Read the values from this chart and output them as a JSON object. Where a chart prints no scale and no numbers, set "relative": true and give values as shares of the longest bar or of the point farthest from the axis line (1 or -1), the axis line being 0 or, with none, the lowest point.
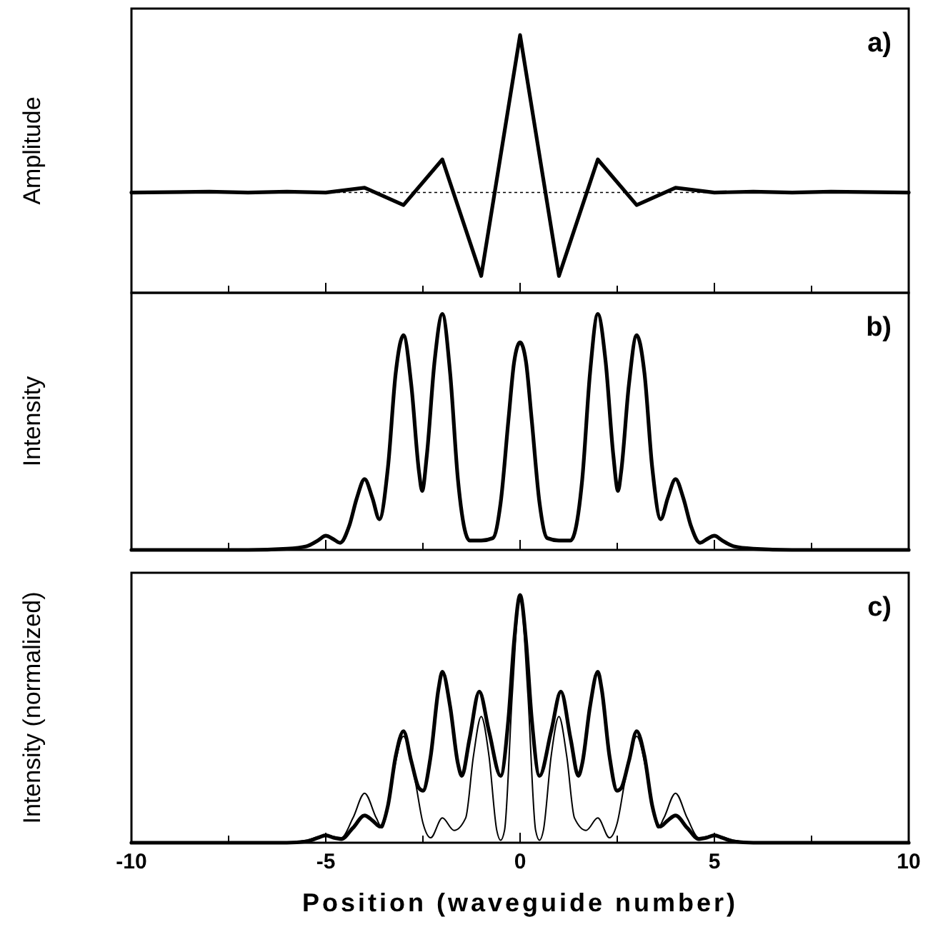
{
  "chart_data": [
    {
      "type": "line",
      "relative": true,
      "ylabel": "Amplitude",
      "annotations": [
        "a)"
      ],
      "xlim": [
        -10,
        10
      ],
      "xticks": [
        -10,
        {
          "value": -7.5,
          "label": null
        },
        -5,
        {
          "value": -2.5,
          "label": null
        },
        0,
        {
          "value": 2.5,
          "label": null
        },
        5,
        {
          "value": 7.5,
          "label": null
        },
        10
      ],
      "tick_labels": false,
      "line_style": "solid",
      "marker": "none",
      "ref_lines": [
        {
          "axis": "y",
          "value": 0,
          "label": null,
          "line_style": "dotted",
          "color": "#000000"
        }
      ],
      "x": [
        -10,
        -8,
        -7,
        -6,
        -5,
        -4,
        -3,
        -2,
        -1,
        0,
        1,
        2,
        3,
        4,
        5,
        6,
        7,
        8,
        10
      ],
      "series": [
        {
          "color": "#000000",
          "values": [
            0,
            0.005,
            0,
            0.005,
            0,
            0.03,
            -0.08,
            0.21,
            -0.53,
            1,
            -0.53,
            0.21,
            -0.08,
            0.03,
            0,
            0.005,
            0,
            0.005,
            0
          ]
        }
      ]
    },
    {
      "type": "line",
      "relative": true,
      "ylabel": "Intensity",
      "annotations": [
        "b)"
      ],
      "xlim": [
        -10,
        10
      ],
      "xticks": [
        -10,
        {
          "value": -7.5,
          "label": null
        },
        -5,
        {
          "value": -2.5,
          "label": null
        },
        0,
        {
          "value": 2.5,
          "label": null
        },
        5,
        {
          "value": 7.5,
          "label": null
        },
        10
      ],
      "tick_labels": false,
      "line_style": "solid",
      "marker": "none",
      "x": [
        -10,
        -7,
        -6,
        -5.5,
        -5.2,
        -5,
        -4.8,
        -4.63,
        -4.4,
        -4.2,
        -4,
        -3.8,
        -3.62,
        -3.4,
        -3.2,
        -3,
        -2.8,
        -2.6,
        -2.52,
        -2.4,
        -2.2,
        -2,
        -1.8,
        -1.6,
        -1.4,
        -1.3,
        -1,
        -0.7,
        -0.5,
        -0.3,
        -0.15,
        0,
        0.15,
        0.3,
        0.5,
        0.7,
        1,
        1.3,
        1.4,
        1.6,
        1.8,
        2,
        2.2,
        2.4,
        2.52,
        2.6,
        2.8,
        3,
        3.2,
        3.4,
        3.62,
        3.8,
        4,
        4.2,
        4.4,
        4.63,
        4.8,
        5,
        5.2,
        5.5,
        6,
        7,
        10
      ],
      "series": [
        {
          "color": "#000000",
          "values": [
            0,
            0,
            0.005,
            0.015,
            0.04,
            0.06,
            0.045,
            0.03,
            0.1,
            0.22,
            0.3,
            0.22,
            0.13,
            0.35,
            0.75,
            0.91,
            0.7,
            0.33,
            0.25,
            0.4,
            0.8,
            1,
            0.75,
            0.3,
            0.07,
            0.04,
            0.04,
            0.05,
            0.2,
            0.55,
            0.8,
            0.88,
            0.8,
            0.55,
            0.2,
            0.05,
            0.04,
            0.04,
            0.07,
            0.3,
            0.75,
            1,
            0.8,
            0.4,
            0.25,
            0.33,
            0.7,
            0.91,
            0.75,
            0.35,
            0.13,
            0.22,
            0.3,
            0.22,
            0.1,
            0.03,
            0.045,
            0.06,
            0.04,
            0.015,
            0.005,
            0,
            0
          ]
        }
      ]
    },
    {
      "type": "line",
      "relative": true,
      "ylabel": "Intensity (normalized)",
      "xlabel": "Position (waveguide number)",
      "annotations": [
        "c)"
      ],
      "xlim": [
        -10,
        10
      ],
      "xticks": [
        -10,
        {
          "value": -7.5,
          "label": null
        },
        -5,
        {
          "value": -2.5,
          "label": null
        },
        0,
        {
          "value": 2.5,
          "label": null
        },
        5,
        {
          "value": 7.5,
          "label": null
        },
        10
      ],
      "tick_labels": "x",
      "line_style": "solid",
      "marker": "none",
      "series": [
        {
          "color": "#000000",
          "x": [
            -10,
            -6,
            -5.5,
            -5.2,
            -5,
            -4.8,
            -4.6,
            -4.3,
            -4,
            -3.8,
            -3.6,
            -3.4,
            -3.2,
            -3,
            -2.8,
            -2.6,
            -2.5,
            -2.3,
            -2.1,
            -2,
            -1.8,
            -1.6,
            -1.5,
            -1.3,
            -1.05,
            -0.8,
            -0.5,
            -0.3,
            -0.15,
            0,
            0.15,
            0.3,
            0.5,
            0.8,
            1.05,
            1.3,
            1.5,
            1.6,
            1.8,
            2,
            2.1,
            2.3,
            2.5,
            2.6,
            2.8,
            3,
            3.2,
            3.4,
            3.6,
            3.8,
            4,
            4.3,
            4.6,
            4.8,
            5,
            5.2,
            5.5,
            6,
            10
          ],
          "values": [
            0,
            0,
            0.005,
            0.02,
            0.03,
            0.02,
            0.015,
            0.06,
            0.11,
            0.09,
            0.065,
            0.15,
            0.35,
            0.45,
            0.33,
            0.22,
            0.21,
            0.35,
            0.62,
            0.69,
            0.55,
            0.32,
            0.27,
            0.42,
            0.61,
            0.45,
            0.27,
            0.5,
            0.82,
            1,
            0.82,
            0.5,
            0.27,
            0.45,
            0.61,
            0.42,
            0.27,
            0.32,
            0.55,
            0.69,
            0.62,
            0.35,
            0.21,
            0.22,
            0.33,
            0.45,
            0.35,
            0.15,
            0.065,
            0.09,
            0.11,
            0.06,
            0.015,
            0.02,
            0.03,
            0.02,
            0.005,
            0,
            0
          ]
        },
        {
          "color": "#000000",
          "x": [
            -10,
            -6,
            -5.5,
            -5,
            -4.6,
            -4.3,
            -4,
            -3.7,
            -3.55,
            -3.3,
            -3,
            -2.7,
            -2.5,
            -2.3,
            -2,
            -1.7,
            -1.4,
            -1.2,
            -1,
            -0.8,
            -0.6,
            -0.5,
            -0.4,
            -0.2,
            0,
            0.2,
            0.4,
            0.5,
            0.6,
            0.8,
            1,
            1.2,
            1.4,
            1.7,
            2,
            2.3,
            2.5,
            2.7,
            3,
            3.3,
            3.55,
            3.7,
            4,
            4.3,
            4.6,
            5,
            5.5,
            6,
            10
          ],
          "values": [
            0,
            0,
            0.01,
            0.03,
            0.02,
            0.1,
            0.2,
            0.1,
            0.06,
            0.25,
            0.43,
            0.25,
            0.08,
            0.02,
            0.1,
            0.05,
            0.1,
            0.35,
            0.51,
            0.35,
            0.05,
            0.01,
            0.05,
            0.6,
            1,
            0.6,
            0.05,
            0.01,
            0.05,
            0.35,
            0.51,
            0.35,
            0.1,
            0.05,
            0.1,
            0.02,
            0.08,
            0.25,
            0.43,
            0.25,
            0.06,
            0.1,
            0.2,
            0.1,
            0.02,
            0.03,
            0.01,
            0,
            0
          ]
        }
      ]
    }
  ]
}
